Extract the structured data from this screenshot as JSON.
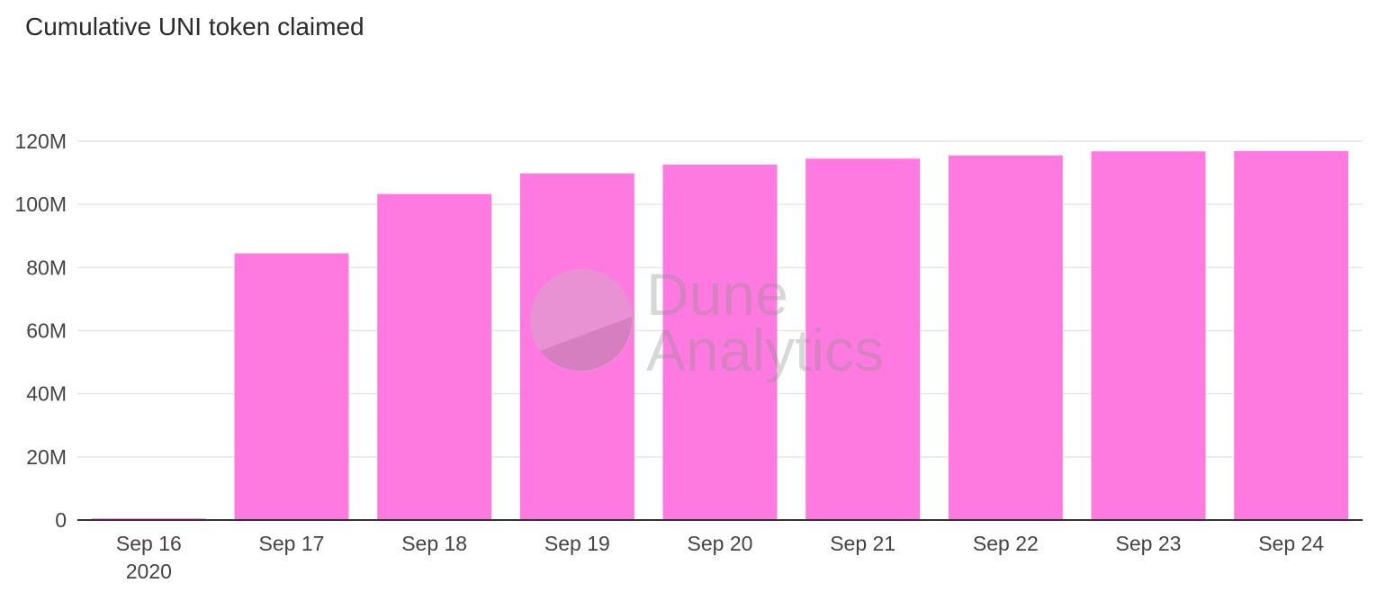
{
  "chart_data": {
    "type": "bar",
    "title": "Cumulative UNI token claimed",
    "categories": [
      "Sep 16",
      "Sep 17",
      "Sep 18",
      "Sep 19",
      "Sep 20",
      "Sep 21",
      "Sep 22",
      "Sep 23",
      "Sep 24"
    ],
    "category_sublabels": [
      "2020",
      "",
      "",
      "",
      "",
      "",
      "",
      "",
      ""
    ],
    "values": [
      0.5,
      84.5,
      103.3,
      109.8,
      112.6,
      114.5,
      115.5,
      116.8,
      116.9
    ],
    "value_unit": "M",
    "xlabel": "",
    "ylabel": "",
    "ylim": [
      0,
      120
    ],
    "yticks": [
      0,
      20,
      40,
      60,
      80,
      100,
      120
    ],
    "ytick_labels": [
      "0",
      "20M",
      "40M",
      "60M",
      "80M",
      "100M",
      "120M"
    ],
    "grid": true,
    "legend": "none",
    "bar_color": "#ff7ae0",
    "grid_color": "#e6e6e6",
    "axis_color": "#333333",
    "label_color": "#444444"
  },
  "watermark": {
    "text_line1": "Dune",
    "text_line2": "Analytics",
    "icon": "dune-logo-icon"
  }
}
